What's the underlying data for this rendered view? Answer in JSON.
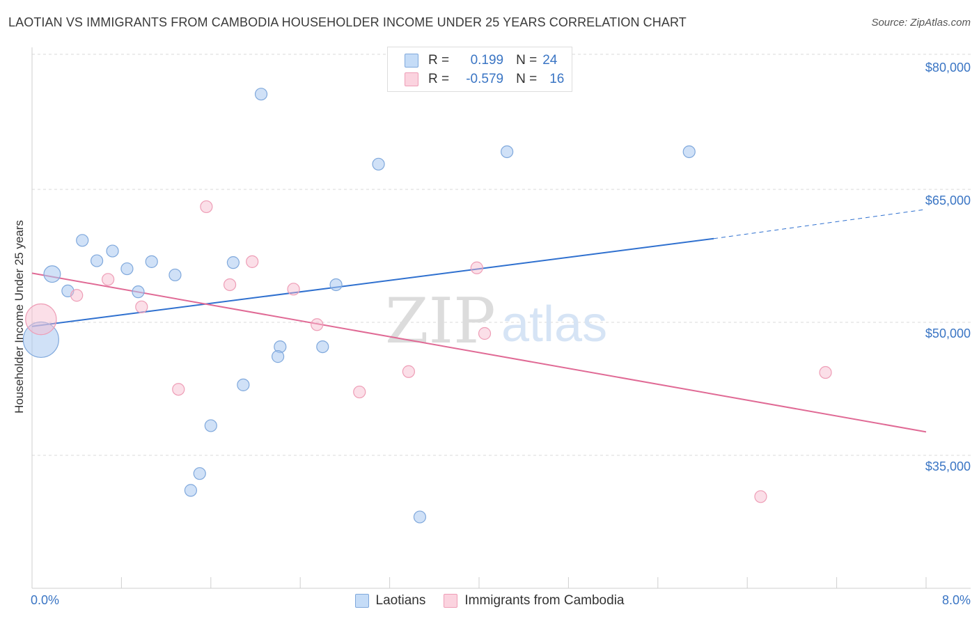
{
  "title": "LAOTIAN VS IMMIGRANTS FROM CAMBODIA HOUSEHOLDER INCOME UNDER 25 YEARS CORRELATION CHART",
  "source": "Source: ZipAtlas.com",
  "watermark": {
    "zip": "ZIP",
    "atlas": "atlas"
  },
  "legend": {
    "rows": [
      {
        "r_label": "R =",
        "r_value": "0.199",
        "n_label": "N =",
        "n_value": "24"
      },
      {
        "r_label": "R =",
        "r_value": "-0.579",
        "n_label": "N =",
        "n_value": "16"
      }
    ]
  },
  "colors": {
    "series1": "#a9c9f0",
    "series1_line": "#2f70cf",
    "series2": "#f7b9cb",
    "series2_line": "#e06a95",
    "tick_text": "#3a75c4"
  },
  "chart_data": {
    "type": "scatter",
    "title": "LAOTIAN VS IMMIGRANTS FROM CAMBODIA HOUSEHOLDER INCOME UNDER 25 YEARS CORRELATION CHART",
    "xlabel": "",
    "ylabel": "Householder Income Under 25 years",
    "xlim": [
      0.0,
      8.0
    ],
    "ylim": [
      22500,
      81500
    ],
    "x_tick_labels": [
      "0.0%",
      "8.0%"
    ],
    "y_tick_labels": [
      "$80,000",
      "$65,000",
      "$50,000",
      "$35,000"
    ],
    "y_ticks": [
      80000,
      65000,
      50000,
      35000
    ],
    "grid": true,
    "legend_position": "bottom",
    "series": [
      {
        "name": "Laotians",
        "color": "#a9c9f0",
        "r": 0.199,
        "n": 24,
        "trend": {
          "x0": 0.0,
          "y0": 50800,
          "x1": 6.1,
          "y1": 60700,
          "dash_to_x": 8.0,
          "dash_to_y": 64000
        },
        "points": [
          {
            "x": 0.08,
            "y": 49300,
            "s": 3
          },
          {
            "x": 0.18,
            "y": 56700,
            "s": 1.4
          },
          {
            "x": 0.32,
            "y": 54800,
            "s": 1
          },
          {
            "x": 0.45,
            "y": 60500,
            "s": 1
          },
          {
            "x": 0.58,
            "y": 58200,
            "s": 1
          },
          {
            "x": 0.72,
            "y": 59300,
            "s": 1
          },
          {
            "x": 0.85,
            "y": 57300,
            "s": 1
          },
          {
            "x": 0.95,
            "y": 54700,
            "s": 1
          },
          {
            "x": 1.07,
            "y": 58100,
            "s": 1
          },
          {
            "x": 1.28,
            "y": 56600,
            "s": 1
          },
          {
            "x": 1.8,
            "y": 58000,
            "s": 1
          },
          {
            "x": 2.05,
            "y": 77000,
            "s": 1
          },
          {
            "x": 2.22,
            "y": 48500,
            "s": 1
          },
          {
            "x": 2.2,
            "y": 47400,
            "s": 1
          },
          {
            "x": 1.89,
            "y": 44200,
            "s": 1
          },
          {
            "x": 1.6,
            "y": 39600,
            "s": 1
          },
          {
            "x": 1.5,
            "y": 34200,
            "s": 1
          },
          {
            "x": 1.42,
            "y": 32300,
            "s": 1
          },
          {
            "x": 2.6,
            "y": 48500,
            "s": 1
          },
          {
            "x": 2.72,
            "y": 55500,
            "s": 1
          },
          {
            "x": 3.1,
            "y": 69100,
            "s": 1
          },
          {
            "x": 3.47,
            "y": 29300,
            "s": 1
          },
          {
            "x": 4.25,
            "y": 70500,
            "s": 1
          },
          {
            "x": 5.88,
            "y": 70500,
            "s": 1
          }
        ]
      },
      {
        "name": "Immigrants from Cambodia",
        "color": "#f7b9cb",
        "r": -0.579,
        "n": 16,
        "trend": {
          "x0": 0.0,
          "y0": 56800,
          "x1": 8.0,
          "y1": 38900
        },
        "points": [
          {
            "x": 0.08,
            "y": 51600,
            "s": 2.6
          },
          {
            "x": 0.4,
            "y": 54300,
            "s": 1
          },
          {
            "x": 0.68,
            "y": 56100,
            "s": 1
          },
          {
            "x": 0.98,
            "y": 53000,
            "s": 1
          },
          {
            "x": 1.31,
            "y": 43700,
            "s": 1
          },
          {
            "x": 1.56,
            "y": 64300,
            "s": 1
          },
          {
            "x": 1.77,
            "y": 55500,
            "s": 1
          },
          {
            "x": 1.97,
            "y": 58100,
            "s": 1
          },
          {
            "x": 2.34,
            "y": 55000,
            "s": 1
          },
          {
            "x": 2.55,
            "y": 51000,
            "s": 1
          },
          {
            "x": 2.93,
            "y": 43400,
            "s": 1
          },
          {
            "x": 3.37,
            "y": 45700,
            "s": 1
          },
          {
            "x": 3.98,
            "y": 57400,
            "s": 1
          },
          {
            "x": 4.05,
            "y": 50000,
            "s": 1
          },
          {
            "x": 6.52,
            "y": 31600,
            "s": 1
          },
          {
            "x": 7.1,
            "y": 45600,
            "s": 1
          }
        ]
      }
    ]
  }
}
